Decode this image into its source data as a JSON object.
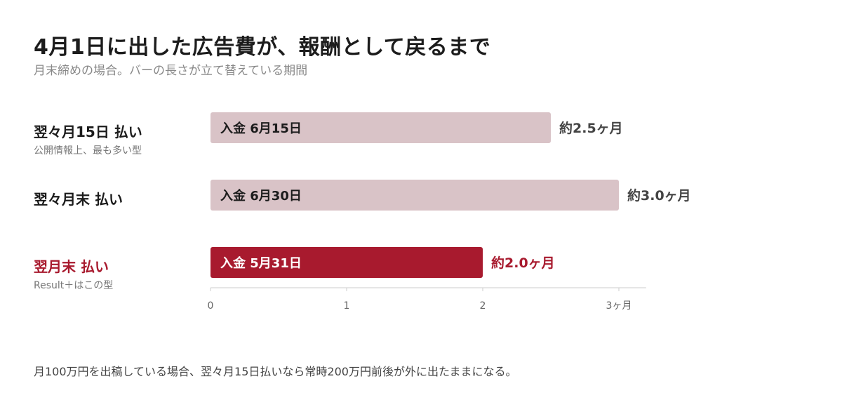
{
  "title": "4月1日に出した広告費が、報酬として戻るまで",
  "subtitle": "月末締めの場合。バーの長さが立て替えている期間",
  "footnote": "月100万円を出稿している場合、翌々月15日払いなら常時200万円前後が外に出たままになる。",
  "rows": [
    {
      "label": "翌々月15日 払い",
      "note": "公開情報上、最も多い型"
    },
    {
      "label": "翌々月末 払い",
      "note": ""
    },
    {
      "label": "翌月末 払い",
      "note": "Result＋はこの型"
    }
  ],
  "colors": {
    "muted_bar": "#d9c3c7",
    "accent": "#a81a2e",
    "text": "#1c1c1c",
    "value_text": "#444444",
    "axis": "#cccccc",
    "tick_text": "#666666"
  },
  "chart_data": {
    "type": "bar",
    "orientation": "horizontal",
    "categories": [
      "翌々月15日 払い",
      "翌々月末 払い",
      "翌月末 払い"
    ],
    "values": [
      2.5,
      3.0,
      2.0
    ],
    "bar_labels": [
      "入金 6月15日",
      "入金 6月30日",
      "入金 5月31日"
    ],
    "value_labels": [
      "約2.5ヶ月",
      "約3.0ヶ月",
      "約2.0ヶ月"
    ],
    "highlight_index": 2,
    "xlim": [
      0,
      3.2
    ],
    "xticks": [
      0,
      1,
      2,
      3
    ],
    "xtick_labels": [
      "0",
      "1",
      "2",
      "3ヶ月"
    ],
    "title": "4月1日に出した広告費が、報酬として戻るまで",
    "subtitle": "月末締めの場合。バーの長さが立て替えている期間",
    "xlabel": "",
    "ylabel": "",
    "grid": false
  }
}
